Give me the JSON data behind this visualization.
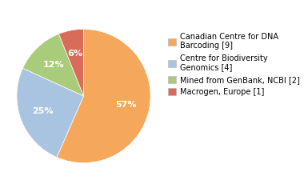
{
  "labels": [
    "Canadian Centre for DNA\nBarcoding [9]",
    "Centre for Biodiversity\nGenomics [4]",
    "Mined from GenBank, NCBI [2]",
    "Macrogen, Europe [1]"
  ],
  "values": [
    56,
    25,
    12,
    6
  ],
  "colors": [
    "#F5A85C",
    "#A8C4E0",
    "#A8CC7A",
    "#D96B5A"
  ],
  "startangle": 90,
  "text_color": "white",
  "background_color": "#ffffff",
  "pct_fontsize": 8,
  "legend_fontsize": 7
}
